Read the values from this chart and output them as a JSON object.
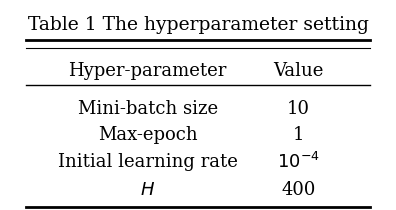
{
  "title": "Table 1 The hyperparameter setting",
  "col_headers": [
    "Hyper-parameter",
    "Value"
  ],
  "rows": [
    [
      "Mini-batch size",
      "10"
    ],
    [
      "Max-epoch",
      "1"
    ],
    [
      "Initial learning rate",
      "10^{-4}"
    ],
    [
      "$H$",
      "400"
    ]
  ],
  "row_italic": [
    false,
    false,
    false,
    true
  ],
  "value_special": [
    false,
    false,
    true,
    false
  ],
  "background_color": "#ffffff",
  "text_color": "#000000",
  "title_fontsize": 13.5,
  "header_fontsize": 13,
  "body_fontsize": 13
}
